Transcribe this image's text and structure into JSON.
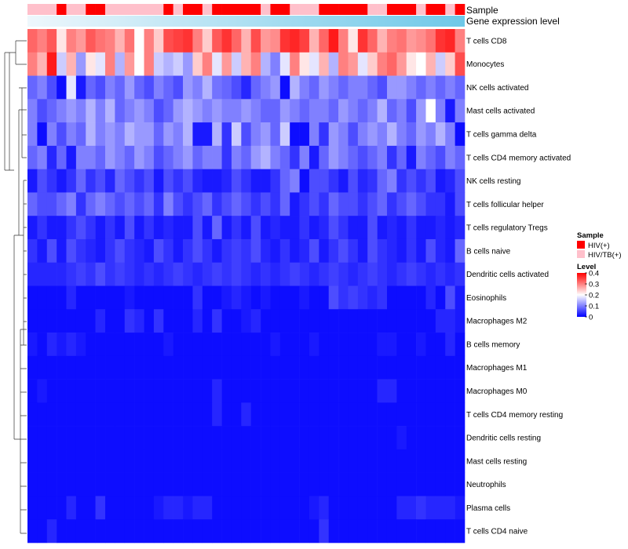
{
  "chart_data": {
    "type": "heatmap",
    "title": "",
    "annotation_tracks": [
      {
        "label": "Sample"
      },
      {
        "label": "Gene expression level"
      }
    ],
    "rows": [
      "T cells CD8",
      "Monocytes",
      "NK cells activated",
      "Mast cells activated",
      "T cells gamma delta",
      "T cells CD4 memory activated",
      "NK cells resting",
      "T cells follicular helper",
      "T cells regulatory  Tregs",
      "B cells naive",
      "Dendritic cells activated",
      "Eosinophils",
      "Macrophages M2",
      "B cells memory",
      "Macrophages M1",
      "Macrophages M0",
      "T cells CD4 memory resting",
      "Dendritic cells resting",
      "Mast cells resting",
      "Neutrophils",
      "Plasma cells",
      "T cells CD4 naive"
    ],
    "column_count": 45,
    "sample_groups": [
      "HIV/TB(+)",
      "HIV/TB(+)",
      "HIV/TB(+)",
      "HIV(+)",
      "HIV/TB(+)",
      "HIV/TB(+)",
      "HIV(+)",
      "HIV(+)",
      "HIV/TB(+)",
      "HIV/TB(+)",
      "HIV/TB(+)",
      "HIV/TB(+)",
      "HIV/TB(+)",
      "HIV/TB(+)",
      "HIV(+)",
      "HIV/TB(+)",
      "HIV(+)",
      "HIV(+)",
      "HIV/TB(+)",
      "HIV(+)",
      "HIV(+)",
      "HIV(+)",
      "HIV(+)",
      "HIV(+)",
      "HIV/TB(+)",
      "HIV(+)",
      "HIV(+)",
      "HIV/TB(+)",
      "HIV/TB(+)",
      "HIV/TB(+)",
      "HIV(+)",
      "HIV(+)",
      "HIV(+)",
      "HIV(+)",
      "HIV(+)",
      "HIV/TB(+)",
      "HIV/TB(+)",
      "HIV(+)",
      "HIV(+)",
      "HIV(+)",
      "HIV/TB(+)",
      "HIV(+)",
      "HIV(+)",
      "HIV/TB(+)",
      "HIV(+)"
    ],
    "level_scale": {
      "min": 0,
      "max": 0.4,
      "ticks": [
        0,
        0.1,
        0.2,
        0.3,
        0.4
      ],
      "colors": [
        "#0000ff",
        "#ffffff",
        "#ff0000"
      ]
    },
    "values": [
      [
        0.32,
        0.3,
        0.33,
        0.22,
        0.3,
        0.28,
        0.33,
        0.31,
        0.3,
        0.26,
        0.31,
        0.2,
        0.3,
        0.24,
        0.34,
        0.35,
        0.36,
        0.3,
        0.24,
        0.33,
        0.36,
        0.32,
        0.26,
        0.34,
        0.28,
        0.29,
        0.36,
        0.37,
        0.35,
        0.26,
        0.32,
        0.38,
        0.3,
        0.22,
        0.36,
        0.32,
        0.26,
        0.3,
        0.31,
        0.28,
        0.29,
        0.31,
        0.36,
        0.37,
        0.3
      ],
      [
        0.3,
        0.26,
        0.38,
        0.16,
        0.26,
        0.12,
        0.22,
        0.18,
        0.3,
        0.14,
        0.28,
        0.2,
        0.3,
        0.16,
        0.14,
        0.16,
        0.12,
        0.24,
        0.3,
        0.18,
        0.28,
        0.16,
        0.26,
        0.3,
        0.14,
        0.1,
        0.18,
        0.3,
        0.22,
        0.18,
        0.26,
        0.14,
        0.3,
        0.28,
        0.18,
        0.24,
        0.3,
        0.32,
        0.28,
        0.22,
        0.2,
        0.26,
        0.16,
        0.24,
        0.34
      ],
      [
        0.08,
        0.1,
        0.06,
        0.01,
        0.18,
        0.02,
        0.08,
        0.06,
        0.1,
        0.08,
        0.12,
        0.08,
        0.06,
        0.1,
        0.08,
        0.06,
        0.12,
        0.1,
        0.14,
        0.09,
        0.08,
        0.06,
        0.03,
        0.08,
        0.1,
        0.12,
        0.01,
        0.14,
        0.1,
        0.08,
        0.12,
        0.1,
        0.08,
        0.1,
        0.1,
        0.08,
        0.06,
        0.12,
        0.12,
        0.1,
        0.08,
        0.1,
        0.08,
        0.1,
        0.08
      ],
      [
        0.1,
        0.06,
        0.08,
        0.1,
        0.12,
        0.1,
        0.14,
        0.1,
        0.14,
        0.08,
        0.1,
        0.12,
        0.1,
        0.06,
        0.08,
        0.12,
        0.14,
        0.12,
        0.1,
        0.12,
        0.1,
        0.1,
        0.12,
        0.1,
        0.08,
        0.08,
        0.12,
        0.1,
        0.08,
        0.1,
        0.1,
        0.08,
        0.12,
        0.1,
        0.08,
        0.1,
        0.14,
        0.08,
        0.1,
        0.06,
        0.12,
        0.2,
        0.1,
        0.02,
        0.1
      ],
      [
        0.1,
        0.01,
        0.1,
        0.06,
        0.1,
        0.08,
        0.14,
        0.1,
        0.12,
        0.1,
        0.14,
        0.12,
        0.12,
        0.08,
        0.12,
        0.1,
        0.14,
        0.02,
        0.02,
        0.14,
        0.04,
        0.16,
        0.06,
        0.1,
        0.12,
        0.08,
        0.16,
        0.01,
        0.01,
        0.1,
        0.04,
        0.12,
        0.1,
        0.06,
        0.1,
        0.12,
        0.1,
        0.14,
        0.1,
        0.08,
        0.12,
        0.1,
        0.14,
        0.1,
        0.01
      ],
      [
        0.08,
        0.1,
        0.03,
        0.08,
        0.02,
        0.1,
        0.1,
        0.08,
        0.12,
        0.1,
        0.08,
        0.12,
        0.1,
        0.06,
        0.08,
        0.1,
        0.12,
        0.08,
        0.1,
        0.1,
        0.04,
        0.1,
        0.08,
        0.12,
        0.14,
        0.1,
        0.08,
        0.04,
        0.1,
        0.02,
        0.08,
        0.12,
        0.1,
        0.08,
        0.06,
        0.08,
        0.1,
        0.04,
        0.08,
        0.02,
        0.1,
        0.08,
        0.06,
        0.1,
        0.08
      ],
      [
        0.02,
        0.06,
        0.04,
        0.02,
        0.04,
        0.08,
        0.04,
        0.06,
        0.03,
        0.08,
        0.06,
        0.04,
        0.06,
        0.02,
        0.06,
        0.04,
        0.06,
        0.03,
        0.02,
        0.02,
        0.03,
        0.06,
        0.04,
        0.02,
        0.02,
        0.04,
        0.08,
        0.1,
        0.01,
        0.06,
        0.06,
        0.04,
        0.02,
        0.06,
        0.03,
        0.04,
        0.08,
        0.1,
        0.04,
        0.06,
        0.04,
        0.06,
        0.02,
        0.03,
        0.06
      ],
      [
        0.08,
        0.06,
        0.06,
        0.08,
        0.1,
        0.04,
        0.08,
        0.1,
        0.08,
        0.06,
        0.08,
        0.06,
        0.08,
        0.04,
        0.1,
        0.06,
        0.04,
        0.06,
        0.08,
        0.04,
        0.06,
        0.08,
        0.06,
        0.04,
        0.06,
        0.04,
        0.08,
        0.02,
        0.04,
        0.06,
        0.04,
        0.08,
        0.06,
        0.06,
        0.04,
        0.06,
        0.08,
        0.04,
        0.06,
        0.08,
        0.06,
        0.04,
        0.04,
        0.02,
        0.06
      ],
      [
        0.02,
        0.04,
        0.02,
        0.02,
        0.04,
        0.06,
        0.04,
        0.02,
        0.04,
        0.02,
        0.06,
        0.02,
        0.04,
        0.02,
        0.03,
        0.02,
        0.02,
        0.06,
        0.02,
        0.08,
        0.02,
        0.04,
        0.02,
        0.06,
        0.02,
        0.03,
        0.02,
        0.02,
        0.04,
        0.02,
        0.03,
        0.06,
        0.04,
        0.02,
        0.02,
        0.06,
        0.02,
        0.03,
        0.02,
        0.04,
        0.02,
        0.02,
        0.03,
        0.02,
        0.03
      ],
      [
        0.04,
        0.02,
        0.06,
        0.02,
        0.06,
        0.04,
        0.03,
        0.02,
        0.04,
        0.06,
        0.04,
        0.03,
        0.02,
        0.06,
        0.04,
        0.02,
        0.04,
        0.06,
        0.04,
        0.02,
        0.04,
        0.05,
        0.04,
        0.06,
        0.03,
        0.02,
        0.04,
        0.02,
        0.03,
        0.06,
        0.02,
        0.04,
        0.06,
        0.04,
        0.02,
        0.06,
        0.04,
        0.03,
        0.02,
        0.04,
        0.02,
        0.06,
        0.03,
        0.02,
        0.08
      ],
      [
        0.03,
        0.03,
        0.03,
        0.03,
        0.04,
        0.05,
        0.04,
        0.06,
        0.04,
        0.05,
        0.04,
        0.03,
        0.04,
        0.03,
        0.04,
        0.05,
        0.04,
        0.03,
        0.04,
        0.05,
        0.04,
        0.05,
        0.04,
        0.03,
        0.04,
        0.03,
        0.04,
        0.05,
        0.04,
        0.03,
        0.04,
        0.05,
        0.04,
        0.03,
        0.04,
        0.05,
        0.04,
        0.03,
        0.04,
        0.05,
        0.04,
        0.03,
        0.04,
        0.03,
        0.04
      ],
      [
        0.01,
        0.01,
        0.01,
        0.01,
        0.03,
        0.01,
        0.01,
        0.01,
        0.01,
        0.01,
        0.02,
        0.01,
        0.01,
        0.01,
        0.01,
        0.01,
        0.01,
        0.04,
        0.01,
        0.01,
        0.02,
        0.03,
        0.02,
        0.01,
        0.02,
        0.01,
        0.01,
        0.01,
        0.02,
        0.01,
        0.01,
        0.06,
        0.04,
        0.05,
        0.04,
        0.03,
        0.04,
        0.01,
        0.01,
        0.01,
        0.01,
        0.03,
        0.01,
        0.06,
        0.02
      ],
      [
        0.01,
        0.01,
        0.01,
        0.01,
        0.01,
        0.01,
        0.01,
        0.03,
        0.01,
        0.01,
        0.04,
        0.03,
        0.01,
        0.04,
        0.01,
        0.01,
        0.01,
        0.03,
        0.01,
        0.04,
        0.01,
        0.01,
        0.02,
        0.03,
        0.01,
        0.01,
        0.01,
        0.01,
        0.01,
        0.01,
        0.01,
        0.01,
        0.01,
        0.01,
        0.01,
        0.01,
        0.01,
        0.01,
        0.01,
        0.01,
        0.01,
        0.01,
        0.03,
        0.03,
        0.02
      ],
      [
        0.02,
        0.01,
        0.03,
        0.02,
        0.03,
        0.02,
        0.01,
        0.01,
        0.01,
        0.01,
        0.01,
        0.01,
        0.01,
        0.01,
        0.02,
        0.01,
        0.01,
        0.01,
        0.01,
        0.01,
        0.01,
        0.01,
        0.01,
        0.01,
        0.01,
        0.02,
        0.01,
        0.01,
        0.01,
        0.02,
        0.01,
        0.01,
        0.01,
        0.01,
        0.01,
        0.01,
        0.02,
        0.02,
        0.01,
        0.01,
        0.02,
        0.01,
        0.01,
        0.03,
        0.01
      ],
      [
        0.01,
        0.01,
        0.01,
        0.01,
        0.01,
        0.01,
        0.01,
        0.01,
        0.01,
        0.01,
        0.01,
        0.01,
        0.01,
        0.01,
        0.01,
        0.01,
        0.01,
        0.01,
        0.01,
        0.01,
        0.01,
        0.01,
        0.01,
        0.01,
        0.01,
        0.01,
        0.01,
        0.01,
        0.01,
        0.01,
        0.01,
        0.01,
        0.01,
        0.01,
        0.01,
        0.01,
        0.01,
        0.01,
        0.01,
        0.01,
        0.01,
        0.01,
        0.01,
        0.01,
        0.01
      ],
      [
        0.01,
        0.02,
        0.01,
        0.01,
        0.01,
        0.01,
        0.01,
        0.01,
        0.01,
        0.01,
        0.01,
        0.01,
        0.01,
        0.01,
        0.01,
        0.01,
        0.01,
        0.01,
        0.01,
        0.03,
        0.01,
        0.01,
        0.01,
        0.01,
        0.01,
        0.01,
        0.01,
        0.01,
        0.01,
        0.01,
        0.01,
        0.01,
        0.01,
        0.01,
        0.01,
        0.01,
        0.03,
        0.03,
        0.01,
        0.01,
        0.01,
        0.01,
        0.01,
        0.01,
        0.01
      ],
      [
        0.01,
        0.01,
        0.01,
        0.01,
        0.01,
        0.01,
        0.01,
        0.01,
        0.01,
        0.01,
        0.01,
        0.01,
        0.01,
        0.01,
        0.01,
        0.01,
        0.01,
        0.01,
        0.01,
        0.03,
        0.01,
        0.01,
        0.03,
        0.01,
        0.01,
        0.01,
        0.01,
        0.01,
        0.01,
        0.01,
        0.01,
        0.01,
        0.01,
        0.01,
        0.01,
        0.01,
        0.01,
        0.01,
        0.01,
        0.01,
        0.01,
        0.01,
        0.01,
        0.01,
        0.01
      ],
      [
        0.01,
        0.01,
        0.01,
        0.01,
        0.01,
        0.01,
        0.01,
        0.01,
        0.01,
        0.01,
        0.01,
        0.01,
        0.01,
        0.01,
        0.01,
        0.01,
        0.01,
        0.01,
        0.01,
        0.01,
        0.01,
        0.01,
        0.01,
        0.01,
        0.01,
        0.01,
        0.01,
        0.01,
        0.01,
        0.01,
        0.01,
        0.01,
        0.01,
        0.01,
        0.01,
        0.01,
        0.01,
        0.01,
        0.02,
        0.01,
        0.01,
        0.01,
        0.01,
        0.01,
        0.01
      ],
      [
        0.01,
        0.01,
        0.01,
        0.01,
        0.01,
        0.01,
        0.01,
        0.01,
        0.01,
        0.01,
        0.01,
        0.01,
        0.01,
        0.01,
        0.01,
        0.01,
        0.01,
        0.01,
        0.01,
        0.01,
        0.01,
        0.01,
        0.01,
        0.01,
        0.01,
        0.01,
        0.01,
        0.01,
        0.01,
        0.01,
        0.01,
        0.01,
        0.01,
        0.01,
        0.01,
        0.01,
        0.01,
        0.01,
        0.01,
        0.01,
        0.01,
        0.01,
        0.01,
        0.01,
        0.01
      ],
      [
        0.01,
        0.01,
        0.01,
        0.01,
        0.01,
        0.01,
        0.01,
        0.01,
        0.01,
        0.01,
        0.01,
        0.01,
        0.01,
        0.01,
        0.01,
        0.01,
        0.01,
        0.01,
        0.01,
        0.01,
        0.01,
        0.01,
        0.01,
        0.01,
        0.01,
        0.01,
        0.01,
        0.01,
        0.01,
        0.01,
        0.01,
        0.01,
        0.01,
        0.01,
        0.01,
        0.01,
        0.01,
        0.01,
        0.01,
        0.01,
        0.01,
        0.01,
        0.01,
        0.01,
        0.01
      ],
      [
        0.01,
        0.01,
        0.01,
        0.01,
        0.03,
        0.01,
        0.01,
        0.04,
        0.01,
        0.01,
        0.01,
        0.01,
        0.01,
        0.02,
        0.03,
        0.03,
        0.02,
        0.03,
        0.03,
        0.01,
        0.01,
        0.01,
        0.01,
        0.01,
        0.01,
        0.01,
        0.01,
        0.01,
        0.01,
        0.02,
        0.03,
        0.01,
        0.01,
        0.01,
        0.01,
        0.01,
        0.01,
        0.01,
        0.03,
        0.03,
        0.04,
        0.03,
        0.03,
        0.03,
        0.02
      ],
      [
        0.01,
        0.01,
        0.03,
        0.01,
        0.01,
        0.01,
        0.01,
        0.01,
        0.01,
        0.01,
        0.01,
        0.01,
        0.01,
        0.01,
        0.01,
        0.01,
        0.01,
        0.01,
        0.01,
        0.01,
        0.01,
        0.01,
        0.01,
        0.01,
        0.01,
        0.01,
        0.01,
        0.01,
        0.01,
        0.01,
        0.04,
        0.01,
        0.01,
        0.01,
        0.01,
        0.01,
        0.01,
        0.01,
        0.01,
        0.01,
        0.01,
        0.01,
        0.01,
        0.01,
        0.01
      ]
    ],
    "legend": {
      "sample_title": "Sample",
      "sample_items": [
        {
          "label": "HIV(+)",
          "color": "#ff0000"
        },
        {
          "label": "HIV/TB(+)",
          "color": "#ffc0cb"
        }
      ],
      "level_title": "Level",
      "gene_track_color": "#6ec8e8"
    }
  }
}
